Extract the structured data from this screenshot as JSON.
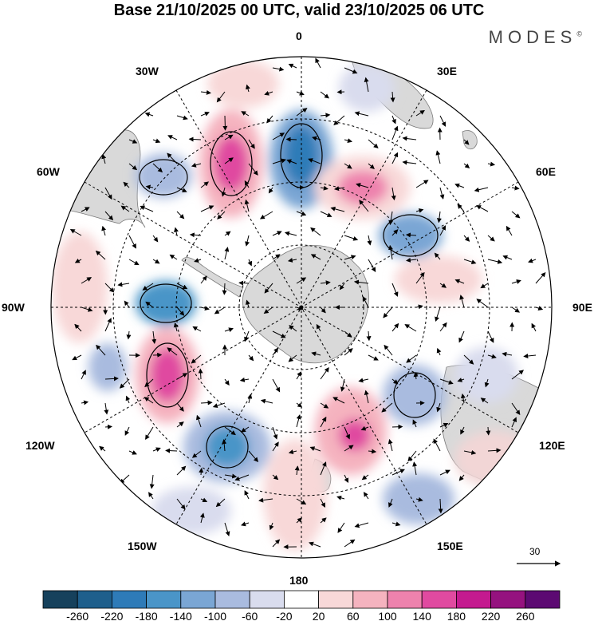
{
  "title": "Base 21/10/2025 00 UTC, valid 23/10/2025 06 UTC",
  "brand": {
    "name": "MODES",
    "mark": "©"
  },
  "longitude_labels": {
    "top": "0",
    "bottom": "180",
    "left": "90W",
    "right": "90E",
    "upper_left": "30W",
    "upper_right": "30E",
    "mid_left": "60W",
    "mid_right": "60E",
    "lower_left": "120W",
    "lower_right": "120E",
    "bottom_left": "150W",
    "bottom_right": "150E"
  },
  "reference_vector": {
    "label": "30"
  },
  "colorbar": {
    "ticks": [
      "-260",
      "-220",
      "-180",
      "-140",
      "-100",
      "-60",
      "-20",
      "20",
      "60",
      "100",
      "140",
      "180",
      "220",
      "260"
    ],
    "colors": [
      "#16415c",
      "#1e5f8c",
      "#2e7bb8",
      "#4a95c8",
      "#7aa6d4",
      "#a9bbdf",
      "#d9dcee",
      "#ffffff",
      "#f8d8d8",
      "#f5b3bf",
      "#ee82ad",
      "#e04aa0",
      "#c41a8f",
      "#95127f",
      "#5c0a72"
    ]
  },
  "colors": {
    "land": "#d9d9d9",
    "coast": "#7a7a7a",
    "grid": "#000000"
  }
}
